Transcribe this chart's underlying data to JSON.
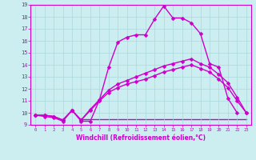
{
  "xlabel": "Windchill (Refroidissement éolien,°C)",
  "background_color": "#cceef0",
  "grid_color": "#aad8dc",
  "line_color": "#cc00cc",
  "ylim": [
    9,
    19
  ],
  "xlim": [
    -0.5,
    23.5
  ],
  "yticks": [
    9,
    10,
    11,
    12,
    13,
    14,
    15,
    16,
    17,
    18,
    19
  ],
  "xticks": [
    0,
    1,
    2,
    3,
    4,
    5,
    6,
    7,
    8,
    9,
    10,
    11,
    12,
    13,
    14,
    15,
    16,
    17,
    18,
    19,
    20,
    21,
    22,
    23
  ],
  "series": [
    {
      "x": [
        0,
        1,
        2,
        3,
        4,
        5,
        6,
        7,
        8,
        9,
        10,
        11,
        12,
        13,
        14,
        15,
        16,
        17,
        18,
        19,
        20,
        21,
        22
      ],
      "y": [
        9.8,
        9.7,
        9.6,
        9.3,
        10.2,
        9.3,
        9.3,
        11.1,
        13.8,
        15.9,
        16.3,
        16.5,
        16.5,
        17.8,
        18.9,
        17.9,
        17.9,
        17.5,
        16.6,
        14.1,
        13.8,
        11.2,
        10.0
      ],
      "marker": "D",
      "linewidth": 1.0,
      "markersize": 2.5,
      "zorder": 3
    },
    {
      "x": [
        0,
        1,
        2,
        3,
        4,
        5,
        6,
        7,
        8,
        9,
        10,
        11,
        12,
        13,
        14,
        15,
        16,
        17,
        18,
        19,
        20,
        21,
        22,
        23
      ],
      "y": [
        9.8,
        9.8,
        9.7,
        9.4,
        10.2,
        9.4,
        10.3,
        11.1,
        11.9,
        12.4,
        12.7,
        13.0,
        13.3,
        13.6,
        13.9,
        14.1,
        14.3,
        14.5,
        14.1,
        13.8,
        13.2,
        12.5,
        11.3,
        10.0
      ],
      "marker": "D",
      "linewidth": 1.0,
      "markersize": 2.5,
      "zorder": 2
    },
    {
      "x": [
        0,
        1,
        2,
        3,
        4,
        5,
        6,
        7,
        8,
        9,
        10,
        11,
        12,
        13,
        14,
        15,
        16,
        17,
        18,
        19,
        20,
        21,
        22,
        23
      ],
      "y": [
        9.8,
        9.8,
        9.7,
        9.4,
        10.2,
        9.4,
        10.2,
        11.0,
        11.7,
        12.1,
        12.4,
        12.6,
        12.8,
        13.1,
        13.4,
        13.6,
        13.8,
        14.0,
        13.7,
        13.4,
        12.8,
        12.1,
        11.0,
        10.0
      ],
      "marker": "D",
      "linewidth": 1.0,
      "markersize": 2.5,
      "zorder": 2
    },
    {
      "x": [
        5,
        6,
        7,
        8,
        9,
        10,
        11,
        12,
        13,
        14,
        15,
        16,
        17,
        18,
        19,
        20,
        21,
        22,
        23
      ],
      "y": [
        9.5,
        9.5,
        9.5,
        9.5,
        9.5,
        9.5,
        9.5,
        9.5,
        9.5,
        9.5,
        9.5,
        9.5,
        9.5,
        9.5,
        9.5,
        9.5,
        9.5,
        9.5,
        9.5
      ],
      "marker": null,
      "linewidth": 1.0,
      "markersize": 0,
      "zorder": 1
    }
  ]
}
